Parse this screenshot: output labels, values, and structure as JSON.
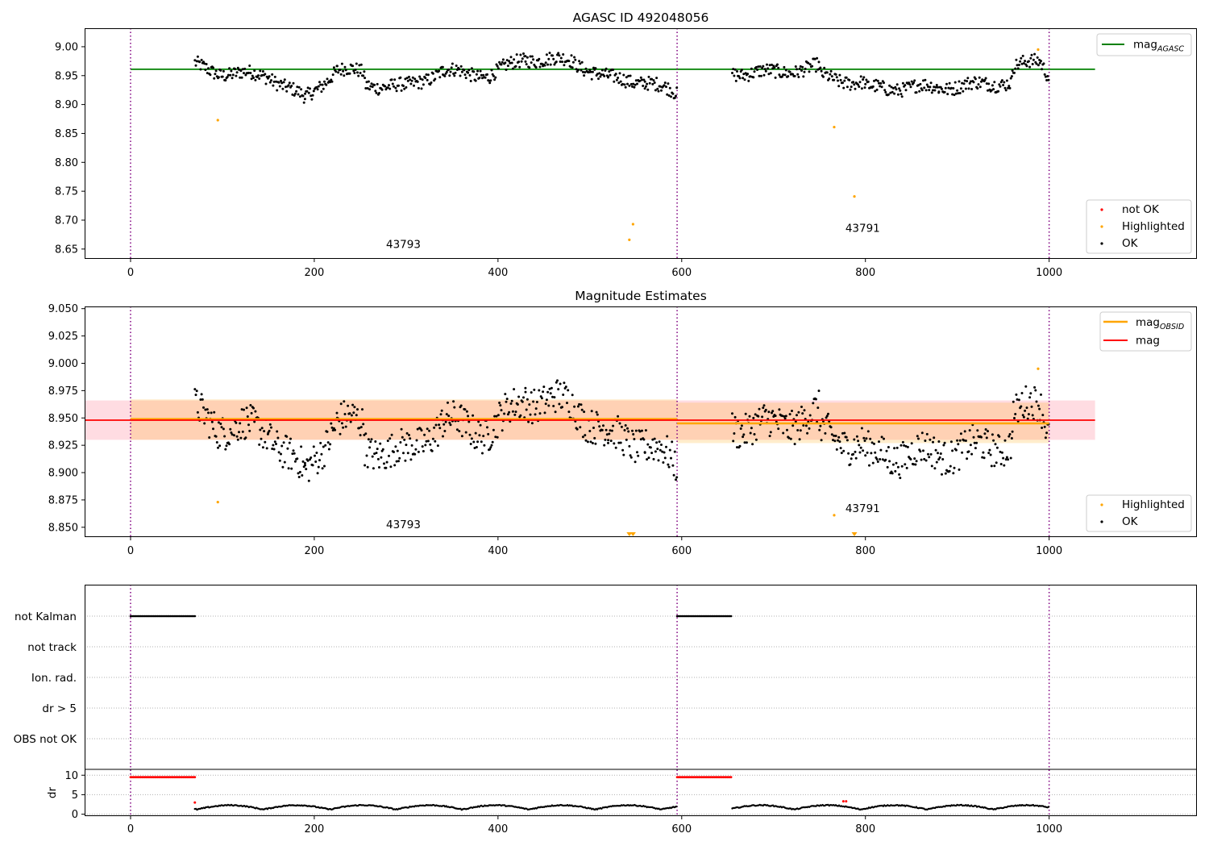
{
  "chart_data": [
    {
      "type": "scatter",
      "title": "AGASC ID 492048056",
      "xlim": [
        -50,
        1160
      ],
      "ylim": [
        8.633,
        9.032
      ],
      "xticks": [
        0,
        200,
        400,
        600,
        800,
        1000
      ],
      "yticks": [
        8.65,
        8.7,
        8.75,
        8.8,
        8.85,
        8.9,
        8.95,
        9.0
      ],
      "xtick_labels": [
        "0",
        "200",
        "400",
        "600",
        "800",
        "1000"
      ],
      "ytick_labels": [
        "8.65",
        "8.70",
        "8.75",
        "8.80",
        "8.85",
        "8.90",
        "8.95",
        "9.00"
      ],
      "obsid_boundaries": [
        0,
        595,
        1000
      ],
      "obsid_labels": [
        {
          "text": "43793",
          "x": 297,
          "y": 8.652
        },
        {
          "text": "43791",
          "x": 797,
          "y": 8.68
        }
      ],
      "hlines": [
        {
          "name": "mag_AGASC",
          "y": 8.961,
          "x0": 0,
          "x1": 1050,
          "color": "#008000"
        }
      ],
      "ok_segments": [
        {
          "x0": 70,
          "x1": 96,
          "y0": 8.968,
          "y1": 8.955
        },
        {
          "x0": 96,
          "x1": 150,
          "y0": 8.955,
          "y1": 8.95
        },
        {
          "x0": 150,
          "x1": 190,
          "y0": 8.95,
          "y1": 8.91
        },
        {
          "x0": 190,
          "x1": 225,
          "y0": 8.91,
          "y1": 8.96
        },
        {
          "x0": 225,
          "x1": 255,
          "y0": 8.96,
          "y1": 8.955
        },
        {
          "x0": 255,
          "x1": 300,
          "y0": 8.935,
          "y1": 8.93
        },
        {
          "x0": 300,
          "x1": 340,
          "y0": 8.93,
          "y1": 8.958
        },
        {
          "x0": 340,
          "x1": 390,
          "y0": 8.958,
          "y1": 8.95
        },
        {
          "x0": 390,
          "x1": 430,
          "y0": 8.95,
          "y1": 8.98
        },
        {
          "x0": 430,
          "x1": 480,
          "y0": 8.98,
          "y1": 8.975
        },
        {
          "x0": 480,
          "x1": 520,
          "y0": 8.975,
          "y1": 8.945
        },
        {
          "x0": 520,
          "x1": 560,
          "y0": 8.945,
          "y1": 8.94
        },
        {
          "x0": 560,
          "x1": 595,
          "y0": 8.94,
          "y1": 8.918
        },
        {
          "x0": 655,
          "x1": 700,
          "y0": 8.955,
          "y1": 8.955
        },
        {
          "x0": 700,
          "x1": 750,
          "y0": 8.955,
          "y1": 8.965
        },
        {
          "x0": 750,
          "x1": 800,
          "y0": 8.95,
          "y1": 8.935
        },
        {
          "x0": 800,
          "x1": 880,
          "y0": 8.928,
          "y1": 8.93
        },
        {
          "x0": 880,
          "x1": 930,
          "y0": 8.93,
          "y1": 8.935
        },
        {
          "x0": 930,
          "x1": 960,
          "y0": 8.935,
          "y1": 8.94
        },
        {
          "x0": 960,
          "x1": 990,
          "y0": 8.965,
          "y1": 8.975
        },
        {
          "x0": 990,
          "x1": 1000,
          "y0": 8.975,
          "y1": 8.95
        }
      ],
      "highlighted_points": [
        {
          "x": 95,
          "y": 8.873
        },
        {
          "x": 543,
          "y": 8.666
        },
        {
          "x": 547,
          "y": 8.693
        },
        {
          "x": 766,
          "y": 8.861
        },
        {
          "x": 788,
          "y": 8.741
        },
        {
          "x": 988,
          "y": 8.995
        }
      ],
      "legends": [
        {
          "position": "top-right",
          "entries": [
            {
              "label": "mag",
              "sub": "AGASC",
              "kind": "line",
              "color": "#008000"
            }
          ]
        },
        {
          "position": "bottom-right",
          "entries": [
            {
              "label": "not OK",
              "kind": "dot",
              "color": "#ff0000"
            },
            {
              "label": "Highlighted",
              "kind": "dot",
              "color": "#ffa500"
            },
            {
              "label": "OK",
              "kind": "dot",
              "color": "#000000"
            }
          ]
        }
      ]
    },
    {
      "type": "scatter",
      "title": "Magnitude Estimates",
      "xlim": [
        -50,
        1160
      ],
      "ylim": [
        8.841,
        9.052
      ],
      "xticks": [
        0,
        200,
        400,
        600,
        800,
        1000
      ],
      "yticks": [
        8.85,
        8.875,
        8.9,
        8.925,
        8.95,
        8.975,
        9.0,
        9.025,
        9.05
      ],
      "xtick_labels": [
        "0",
        "200",
        "400",
        "600",
        "800",
        "1000"
      ],
      "ytick_labels": [
        "8.850",
        "8.875",
        "8.900",
        "8.925",
        "8.950",
        "8.975",
        "9.000",
        "9.025",
        "9.050"
      ],
      "obsid_boundaries": [
        0,
        595,
        1000
      ],
      "obsid_labels": [
        {
          "text": "43793",
          "x": 297,
          "y": 8.849
        },
        {
          "text": "43791",
          "x": 797,
          "y": 8.864
        }
      ],
      "mag": {
        "y": 8.948,
        "band": [
          8.93,
          8.966
        ],
        "x0": -50,
        "x1": 1050,
        "color": "#ff0000",
        "band_color": "#ffc0cb"
      },
      "mag_obsid": [
        {
          "y": 8.949,
          "band": [
            8.93,
            8.967
          ],
          "x0": 0,
          "x1": 595
        },
        {
          "y": 8.945,
          "band": [
            8.927,
            8.964
          ],
          "x0": 595,
          "x1": 1000
        }
      ],
      "highlighted_points": [
        {
          "x": 95,
          "y": 8.873
        },
        {
          "x": 766,
          "y": 8.861
        },
        {
          "x": 988,
          "y": 8.995
        }
      ],
      "offscale_markers": [
        {
          "x": 543
        },
        {
          "x": 547
        },
        {
          "x": 788
        }
      ],
      "legends": [
        {
          "position": "top-right",
          "entries": [
            {
              "label": "mag",
              "sub": "OBSID",
              "kind": "line",
              "color": "#ffa500"
            },
            {
              "label": "mag",
              "kind": "line",
              "color": "#ff0000"
            }
          ]
        },
        {
          "position": "bottom-right",
          "entries": [
            {
              "label": "Highlighted",
              "kind": "dot",
              "color": "#ffa500"
            },
            {
              "label": "OK",
              "kind": "dot",
              "color": "#000000"
            }
          ]
        }
      ]
    },
    {
      "type": "scatter",
      "title": "",
      "xlim": [
        -50,
        1160
      ],
      "flag_rows": [
        "not Kalman",
        "not track",
        "Ion. rad.",
        "dr > 5",
        "OBS not OK"
      ],
      "not_kalman_ranges": [
        [
          0,
          70
        ],
        [
          595,
          655
        ]
      ],
      "dr": {
        "ylim": [
          -0.5,
          11.5
        ],
        "yticks": [
          0,
          5,
          10
        ],
        "ytick_labels": [
          "0",
          "5",
          "10"
        ],
        "ylabel": "dr",
        "clipped_ranges": [
          [
            0,
            70
          ],
          [
            595,
            655
          ]
        ],
        "clipped_value": 10,
        "red_points": [
          {
            "x": 70,
            "y": 3.0
          },
          {
            "x": 776,
            "y": 3.3
          },
          {
            "x": 779,
            "y": 3.3
          }
        ],
        "segments": [
          [
            70,
            595
          ],
          [
            655,
            1000
          ]
        ]
      },
      "xticks": [
        0,
        200,
        400,
        600,
        800,
        1000
      ],
      "xtick_labels": [
        "0",
        "200",
        "400",
        "600",
        "800",
        "1000"
      ]
    }
  ]
}
